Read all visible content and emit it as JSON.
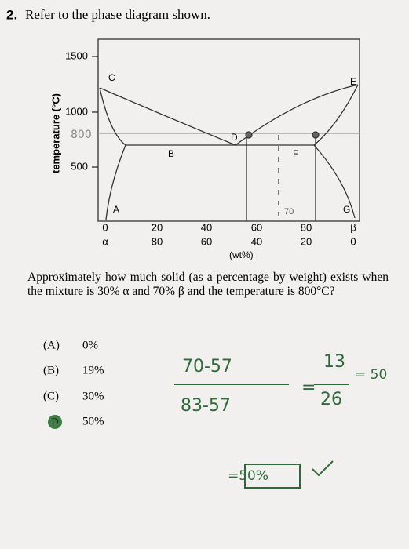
{
  "question": {
    "number": "2.",
    "prompt": "Refer to the phase diagram shown."
  },
  "diagram": {
    "y_axis_label": "temperature (°C)",
    "y_ticks": [
      "1500",
      "1000",
      "500"
    ],
    "handwritten_temperature": "800",
    "region_labels": [
      "C",
      "E",
      "D",
      "B",
      "F",
      "A",
      "G"
    ],
    "x_ticks_top": [
      "0",
      "20",
      "40",
      "60",
      "80",
      "β"
    ],
    "x_ticks_bottom": [
      "α",
      "80",
      "60",
      "40",
      "20",
      "0"
    ],
    "handwritten_composition": "70",
    "x_axis_label": "(wt%)"
  },
  "question_text": "Approximately how much solid (as a percentage by weight) exists when the mixture is 30% α and 70% β and the temperature is 800°C?",
  "options": [
    {
      "letter": "(A)",
      "text": "0%"
    },
    {
      "letter": "(B)",
      "text": "19%"
    },
    {
      "letter": "(C)",
      "text": "30%"
    },
    {
      "letter": "D",
      "text": "50%"
    }
  ],
  "handwriting": {
    "numerator": "70-57",
    "denominator": "83-57",
    "equals": "=",
    "numerator2": "13",
    "denominator2": "26",
    "result": "= 50",
    "final": "=50%"
  }
}
